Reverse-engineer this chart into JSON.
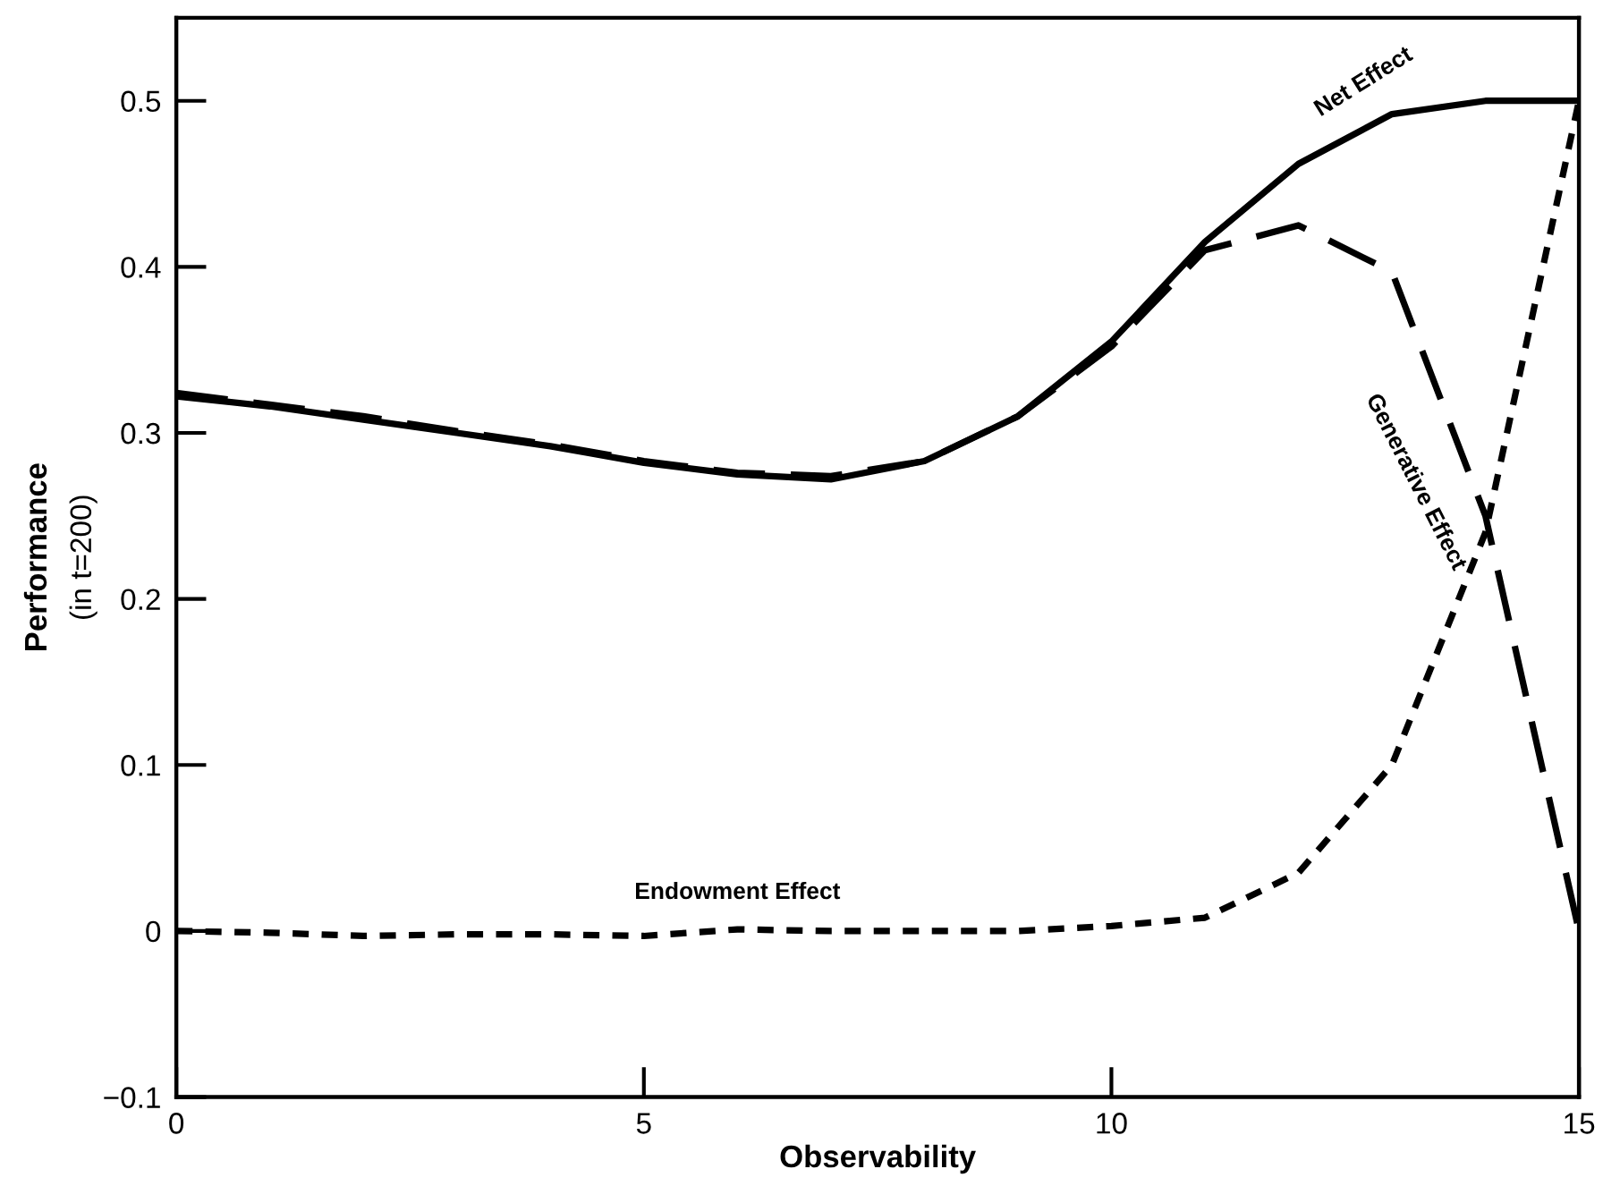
{
  "chart_data": {
    "type": "line",
    "xlabel": "Observability",
    "ylabel": "Performance",
    "annotations": [
      "(in t=200)"
    ],
    "x": [
      0,
      1,
      2,
      3,
      4,
      5,
      6,
      7,
      8,
      9,
      10,
      11,
      12,
      13,
      14,
      15
    ],
    "series": [
      {
        "name": "Net Effect",
        "color": "#000000",
        "line_style": "solid",
        "values": [
          0.322,
          0.316,
          0.308,
          0.3,
          0.292,
          0.282,
          0.275,
          0.272,
          0.283,
          0.31,
          0.355,
          0.415,
          0.462,
          0.492,
          0.5,
          0.5
        ]
      },
      {
        "name": "Generative Effect",
        "color": "#000000",
        "line_style": "dashed",
        "values": [
          0.324,
          0.317,
          0.31,
          0.301,
          0.293,
          0.283,
          0.276,
          0.274,
          0.283,
          0.31,
          0.352,
          0.41,
          0.425,
          0.397,
          0.25,
          0.0
        ]
      },
      {
        "name": "Endowment Effect",
        "color": "#000000",
        "line_style": "dotted",
        "values": [
          0.0,
          -0.001,
          -0.003,
          -0.002,
          -0.002,
          -0.003,
          0.001,
          0.0,
          0.0,
          0.0,
          0.003,
          0.008,
          0.035,
          0.1,
          0.24,
          0.5
        ]
      }
    ],
    "xlim": [
      0,
      15
    ],
    "xticks": [
      0,
      5,
      10,
      15
    ],
    "ylim": [
      -0.1,
      0.55
    ],
    "yticks": [
      {
        "value": -0.1,
        "label": "−0.1"
      },
      0,
      0.1,
      0.2,
      0.3,
      0.4,
      0.5
    ],
    "grid": false,
    "legend": false,
    "marker": "none"
  }
}
